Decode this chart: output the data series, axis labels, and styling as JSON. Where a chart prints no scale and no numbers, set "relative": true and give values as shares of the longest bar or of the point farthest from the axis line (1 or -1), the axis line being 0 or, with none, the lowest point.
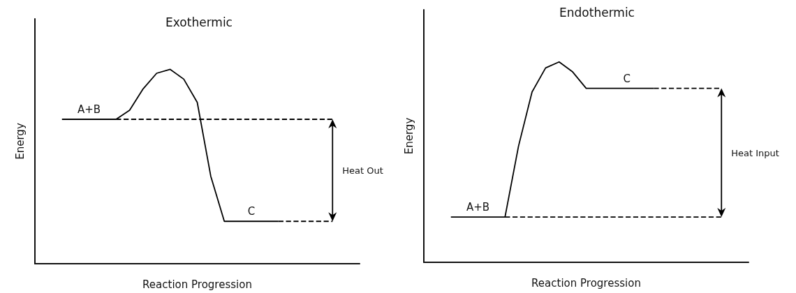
{
  "chart_data": [
    {
      "type": "line",
      "title": "Exothermic",
      "xlabel": "Reaction Progression",
      "ylabel": "Energy",
      "relative": true,
      "marker": "none",
      "categories": [
        null,
        null,
        null,
        null,
        null,
        null,
        null,
        null,
        null,
        null,
        null,
        null,
        null,
        null,
        null,
        null,
        null,
        null,
        null,
        null,
        null,
        null,
        null,
        null,
        null
      ],
      "series": [
        {
          "color": "#000000",
          "line_style": "solid",
          "values": [
            null,
            null,
            0.743,
            0.743,
            0.743,
            0.743,
            0.743,
            0.79,
            0.9,
            0.98,
            1,
            0.95,
            0.83,
            0.45,
            0.218,
            0.218,
            0.218,
            0.218,
            0.218,
            null,
            null,
            null,
            null,
            null,
            null
          ]
        },
        {
          "color": "#000000",
          "line_style": "dashed",
          "values": [
            null,
            null,
            null,
            null,
            null,
            null,
            0.743,
            0.743,
            0.743,
            0.743,
            0.743,
            0.743,
            0.743,
            0.743,
            0.743,
            0.743,
            0.743,
            0.743,
            0.743,
            0.743,
            0.743,
            0.743,
            0.743,
            null,
            null
          ]
        },
        {
          "color": "#000000",
          "line_style": "dashed",
          "values": [
            null,
            null,
            null,
            null,
            null,
            null,
            null,
            null,
            null,
            null,
            null,
            null,
            null,
            null,
            null,
            null,
            null,
            null,
            0.218,
            0.218,
            0.218,
            0.218,
            0.218,
            null,
            null
          ]
        }
      ],
      "annotations": [
        "A+B",
        "C",
        "Heat Out"
      ]
    },
    {
      "type": "line",
      "title": "Endothermic",
      "xlabel": "Reaction Progression",
      "ylabel": "Energy",
      "relative": true,
      "marker": "none",
      "categories": [
        null,
        null,
        null,
        null,
        null,
        null,
        null,
        null,
        null,
        null,
        null,
        null,
        null,
        null,
        null,
        null,
        null,
        null,
        null,
        null,
        null,
        null,
        null,
        null,
        null
      ],
      "series": [
        {
          "color": "#000000",
          "line_style": "solid",
          "values": [
            null,
            null,
            0.226,
            0.226,
            0.226,
            0.226,
            0.226,
            0.58,
            0.85,
            0.97,
            1,
            0.95,
            0.868,
            0.868,
            0.868,
            0.868,
            0.868,
            0.868,
            null,
            null,
            null,
            null,
            null,
            null,
            null
          ]
        },
        {
          "color": "#000000",
          "line_style": "dashed",
          "values": [
            null,
            null,
            null,
            null,
            null,
            null,
            null,
            null,
            null,
            null,
            null,
            null,
            null,
            null,
            null,
            null,
            null,
            0.868,
            0.868,
            0.868,
            0.868,
            0.868,
            0.868,
            null,
            null
          ]
        },
        {
          "color": "#000000",
          "line_style": "dashed",
          "values": [
            null,
            null,
            null,
            null,
            null,
            null,
            0.226,
            0.226,
            0.226,
            0.226,
            0.226,
            0.226,
            0.226,
            0.226,
            0.226,
            0.226,
            0.226,
            0.226,
            0.226,
            0.226,
            0.226,
            0.226,
            0.226,
            null,
            null
          ]
        }
      ],
      "annotations": [
        "A+B",
        "C",
        "Heat Input"
      ]
    }
  ]
}
